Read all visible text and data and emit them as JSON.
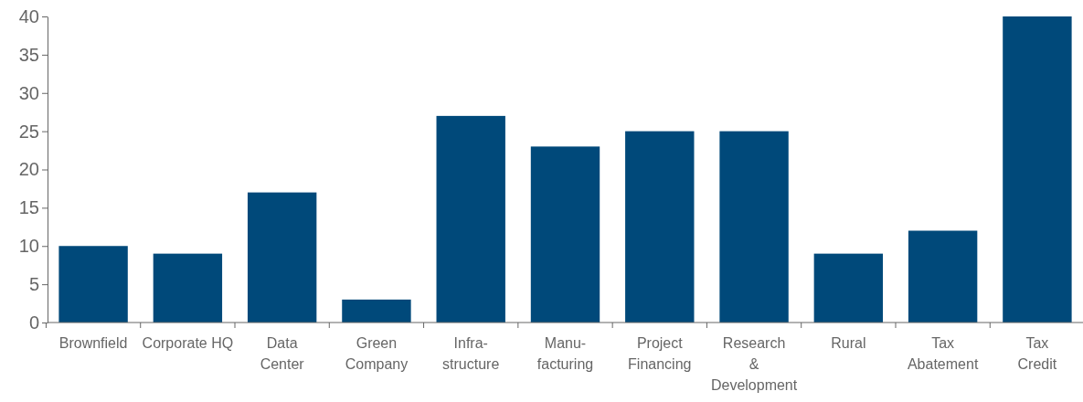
{
  "chart_data": {
    "type": "bar",
    "categories": [
      "Brownfield",
      "Corporate HQ",
      "Data\nCenter",
      "Green\nCompany",
      "Infra-\nstructure",
      "Manu-\nfacturing",
      "Project\nFinancing",
      "Research\n&\nDevelopment",
      "Rural",
      "Tax\nAbatement",
      "Tax\nCredit"
    ],
    "values": [
      10,
      9,
      17,
      3,
      27,
      23,
      25,
      25,
      9,
      12,
      40
    ],
    "color": "#00497a",
    "ylim": [
      0,
      40
    ],
    "yticks": [
      0,
      5,
      10,
      15,
      20,
      25,
      30,
      35,
      40
    ],
    "grid": false
  }
}
